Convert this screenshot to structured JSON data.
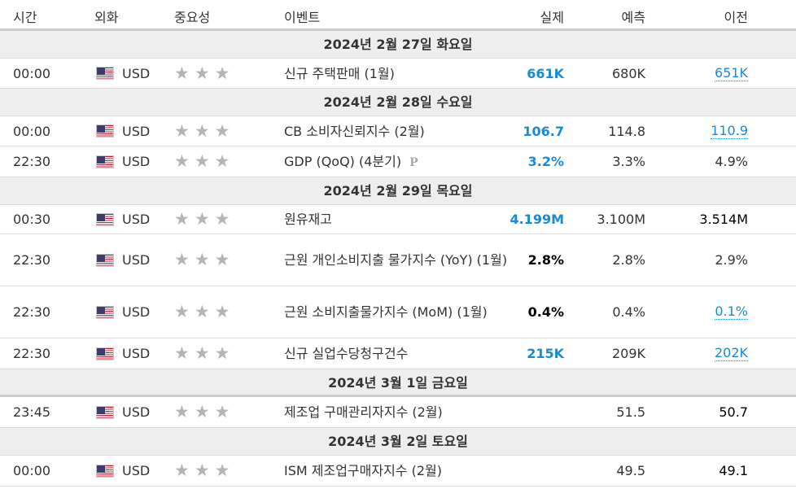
{
  "header": {
    "time": "시간",
    "currency": "외화",
    "importance": "중요성",
    "event": "이벤트",
    "actual": "실제",
    "forecast": "예측",
    "previous": "이전"
  },
  "colors": {
    "positive": "#1a8ad4",
    "neutral": "#000000",
    "star": "#b5b5b5",
    "date_bg": "#eeeeee"
  },
  "icons": {
    "flag": "us-flag-icon",
    "star": "star-icon",
    "preliminary": "preliminary-icon"
  },
  "dates": [
    "2024년 2월 27일 화요일",
    "2024년 2월 28일 수요일",
    "2024년 2월 29일 목요일",
    "2024년 3월 1일 금요일",
    "2024년 3월 2일 토요일"
  ],
  "events": [
    {
      "time": "00:00",
      "currency": "USD",
      "event": "신규 주택판매 (1월)",
      "actual": "661K",
      "forecast": "680K",
      "previous": "651K"
    },
    {
      "time": "00:00",
      "currency": "USD",
      "event": "CB 소비자신뢰지수 (2월)",
      "actual": "106.7",
      "forecast": "114.8",
      "previous": "110.9"
    },
    {
      "time": "22:30",
      "currency": "USD",
      "event": "GDP (QoQ) (4분기)",
      "prelim_mark": "P",
      "actual": "3.2%",
      "forecast": "3.3%",
      "previous": "4.9%"
    },
    {
      "time": "00:30",
      "currency": "USD",
      "event": "원유재고",
      "actual": "4.199M",
      "forecast": "3.100M",
      "previous": "3.514M"
    },
    {
      "time": "22:30",
      "currency": "USD",
      "event": "근원 개인소비지출 물가지수 (YoY) (1월)",
      "actual": "2.8%",
      "forecast": "2.8%",
      "previous": "2.9%"
    },
    {
      "time": "22:30",
      "currency": "USD",
      "event": "근원 소비지출물가지수 (MoM) (1월)",
      "actual": "0.4%",
      "forecast": "0.4%",
      "previous": "0.1%"
    },
    {
      "time": "22:30",
      "currency": "USD",
      "event": "신규 실업수당청구건수",
      "actual": "215K",
      "forecast": "209K",
      "previous": "202K"
    },
    {
      "time": "23:45",
      "currency": "USD",
      "event": "제조업 구매관리자지수 (2월)",
      "actual": "",
      "forecast": "51.5",
      "previous": "50.7"
    },
    {
      "time": "00:00",
      "currency": "USD",
      "event": "ISM 제조업구매자지수 (2월)",
      "actual": "",
      "forecast": "49.5",
      "previous": "49.1"
    }
  ]
}
